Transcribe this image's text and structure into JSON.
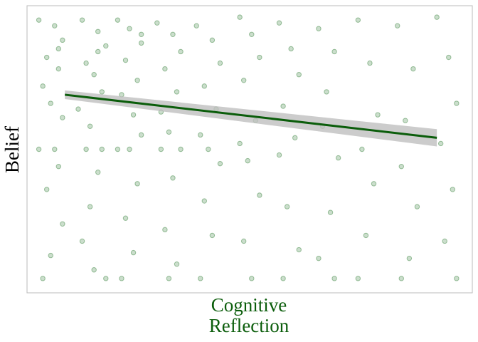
{
  "chart_data": {
    "type": "scatter",
    "x_label": "Cognitive Reflection",
    "y_label": "Belief",
    "xlim": [
      -0.6,
      10.7
    ],
    "ylim": [
      0,
      100
    ],
    "series": [
      {
        "color": "#2e7d32",
        "x": [
          -0.3,
          0.1,
          0.3,
          -0.1,
          0.2,
          -0.2,
          0.0,
          0.3,
          -0.3,
          0.1,
          0.2,
          -0.1,
          0.3,
          0.0,
          -0.2,
          0.2,
          0.8,
          1.2,
          1.4,
          0.9,
          1.1,
          1.3,
          0.7,
          1.0,
          1.3,
          0.9,
          1.2,
          1.0,
          0.8,
          1.1,
          1.4,
          1.2,
          1.7,
          2.0,
          2.3,
          1.9,
          2.2,
          1.8,
          2.1,
          2.3,
          1.7,
          2.0,
          2.2,
          1.9,
          2.1,
          1.8,
          2.3,
          2.7,
          3.1,
          3.3,
          2.9,
          3.2,
          2.8,
          3.0,
          3.3,
          2.8,
          3.1,
          2.9,
          3.2,
          3.0,
          3.7,
          4.1,
          4.3,
          3.9,
          4.2,
          3.8,
          4.0,
          4.3,
          3.9,
          4.1,
          3.8,
          4.8,
          5.1,
          5.3,
          4.9,
          5.2,
          4.8,
          5.0,
          5.3,
          4.9,
          5.1,
          5.8,
          6.1,
          6.3,
          5.9,
          6.2,
          5.8,
          6.0,
          6.3,
          5.9,
          6.8,
          7.2,
          7.0,
          6.9,
          7.3,
          7.1,
          6.8,
          7.2,
          7.8,
          8.1,
          8.3,
          7.9,
          8.2,
          8.0,
          7.8,
          8.8,
          9.2,
          9.0,
          8.9,
          9.3,
          9.1,
          8.9,
          9.8,
          10.1,
          10.3,
          9.9,
          10.2,
          10.0,
          10.3
        ],
        "y": [
          95,
          93,
          88,
          82,
          78,
          72,
          66,
          61,
          50,
          50,
          44,
          36,
          24,
          13,
          5,
          85,
          95,
          91,
          86,
          80,
          76,
          70,
          64,
          58,
          50,
          50,
          42,
          30,
          18,
          8,
          5,
          84,
          95,
          92,
          87,
          81,
          74,
          69,
          62,
          55,
          50,
          50,
          38,
          26,
          14,
          5,
          90,
          94,
          90,
          84,
          78,
          70,
          63,
          56,
          50,
          50,
          40,
          22,
          10,
          5,
          93,
          88,
          80,
          72,
          64,
          55,
          50,
          45,
          32,
          20,
          5,
          96,
          90,
          82,
          74,
          60,
          52,
          46,
          34,
          18,
          5,
          94,
          85,
          76,
          65,
          54,
          48,
          30,
          15,
          5,
          92,
          84,
          70,
          58,
          47,
          28,
          12,
          5,
          95,
          80,
          62,
          50,
          38,
          20,
          5,
          93,
          78,
          60,
          44,
          30,
          12,
          5,
          96,
          82,
          66,
          52,
          36,
          18,
          5
        ]
      }
    ],
    "regression": {
      "x": [
        0.36,
        9.8
      ],
      "y": [
        69,
        54
      ],
      "lower": [
        67.5,
        51
      ],
      "upper": [
        70.5,
        57
      ],
      "color": "#0b5d0b",
      "band_color": "#bfbfbf"
    }
  }
}
